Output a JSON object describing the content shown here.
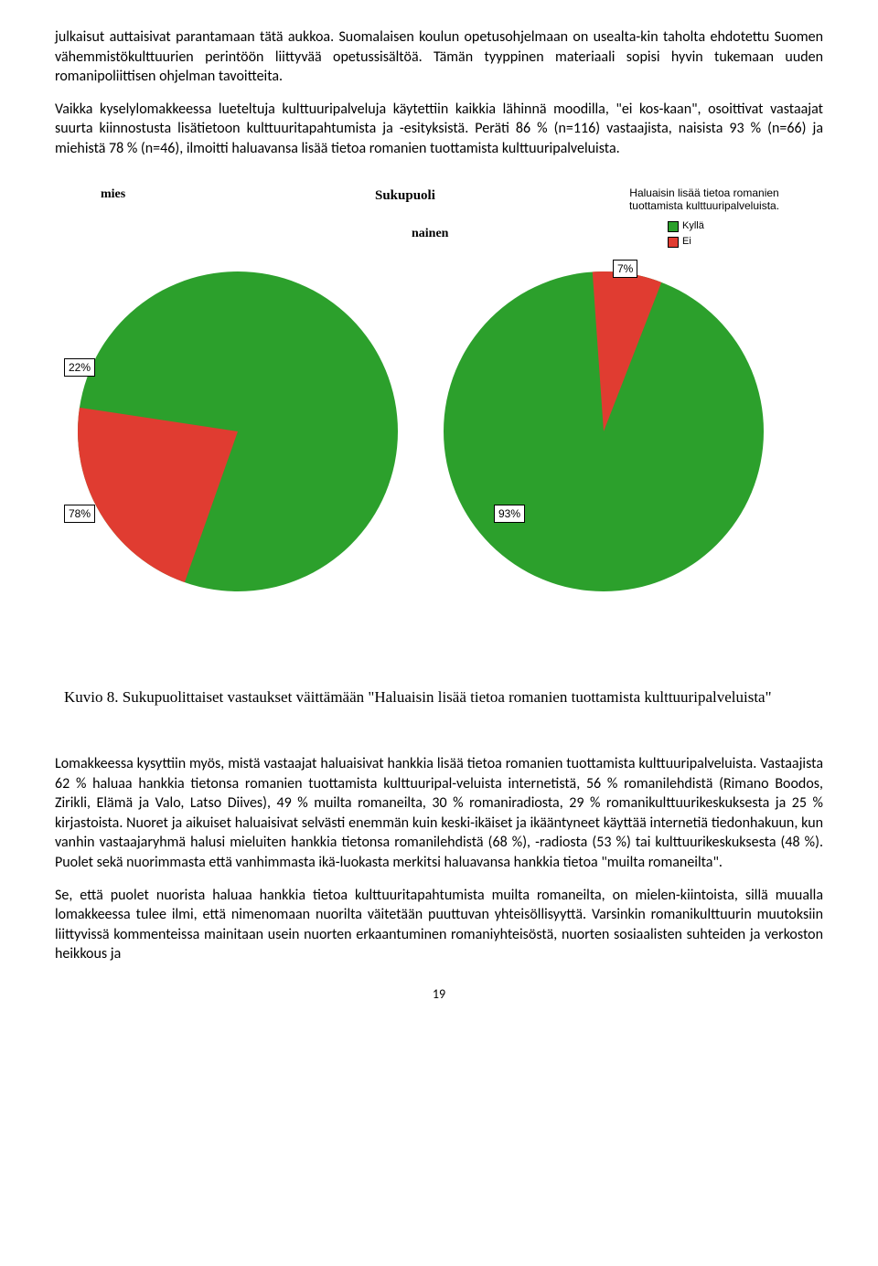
{
  "para1": "julkaisut auttaisivat parantamaan tätä aukkoa. Suomalaisen koulun opetusohjelmaan on usealta-kin taholta ehdotettu Suomen vähemmistökulttuurien perintöön liittyvää opetussisältöä. Tämän tyyppinen materiaali sopisi hyvin tukemaan uuden romanipoliittisen ohjelman tavoitteita.",
  "para2": "Vaikka kyselylomakkeessa lueteltuja kulttuuripalveluja käytettiin kaikkia lähinnä moodilla, \"ei kos-kaan\", osoittivat vastaajat suurta kiinnostusta lisätietoon kulttuuritapahtumista ja -esityksistä. Peräti 86 % (n=116) vastaajista, naisista 93 % (n=66) ja miehistä 78 % (n=46), ilmoitti haluavansa lisää tietoa romanien tuottamista kulttuuripalveluista.",
  "para3": "Lomakkeessa kysyttiin myös, mistä vastaajat haluaisivat hankkia lisää tietoa romanien tuottamista kulttuuripalveluista. Vastaajista 62 % haluaa hankkia tietonsa romanien tuottamista kulttuuripal-veluista internetistä, 56 % romanilehdistä (Rimano Boodos, Zirikli, Elämä ja Valo, Latso Diives), 49 % muilta romaneilta, 30 % romaniradiosta, 29 % romanikulttuurikeskuksesta ja 25 % kirjastoista. Nuoret ja aikuiset haluaisivat selvästi enemmän kuin keski-ikäiset ja ikääntyneet käyttää internetiä tiedonhakuun, kun vanhin vastaajaryhmä halusi mieluiten hankkia tietonsa romanilehdistä (68 %), -radiosta (53 %) tai kulttuurikeskuksesta (48 %). Puolet sekä nuorimmasta että vanhimmasta ikä-luokasta merkitsi haluavansa hankkia tietoa \"muilta romaneilta\".",
  "para4": "Se, että puolet nuorista haluaa hankkia tietoa kulttuuritapahtumista muilta romaneilta, on mielen-kiintoista, sillä muualla lomakkeessa tulee ilmi, että nimenomaan nuorilta väitetään puuttuvan yhteisöllisyyttä. Varsinkin romanikulttuurin muutoksiin liittyvissä kommenteissa mainitaan usein nuorten erkaantuminen romaniyhteisöstä, nuorten sosiaalisten suhteiden ja verkoston heikkous ja",
  "chart": {
    "group_title": "Sukupuoli",
    "col_label_left": "mies",
    "col_label_right": "nainen",
    "question_text": "Haluaisin lisää tietoa romanien tuottamista kulttuuripalveluista.",
    "legend": {
      "yes": "Kyllä",
      "no": "Ei"
    },
    "colors": {
      "yes": "#2ca02c",
      "no": "#e03c31"
    },
    "pie_left": {
      "slices": [
        {
          "label": "22%",
          "value": 22,
          "color": "#e03c31"
        },
        {
          "label": "78%",
          "value": 78,
          "color": "#2ca02c"
        }
      ]
    },
    "pie_right": {
      "slices": [
        {
          "label": "7%",
          "value": 7,
          "color": "#e03c31"
        },
        {
          "label": "93%",
          "value": 93,
          "color": "#2ca02c"
        }
      ]
    }
  },
  "caption": "Kuvio 8. Sukupuolittaiset vastaukset väittämään \"Haluaisin lisää tietoa romanien tuottamista kulttuuripalveluista\"",
  "page_number": "19"
}
